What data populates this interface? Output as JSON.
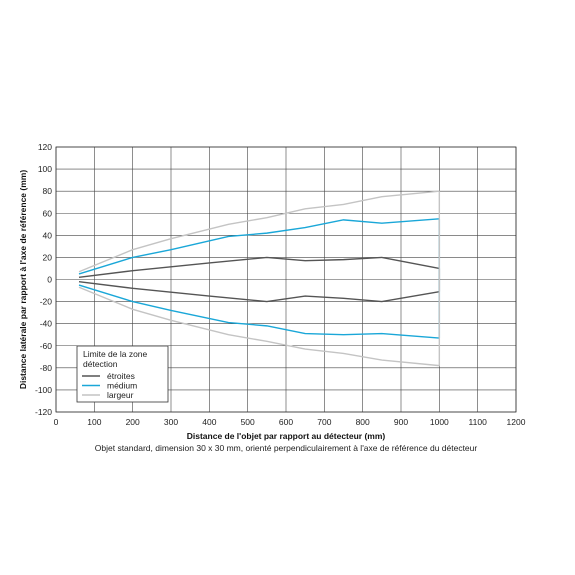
{
  "chart_data": {
    "type": "line",
    "xlabel": "Distance de l'objet par rapport au détecteur (mm)",
    "ylabel": "Distance latérale par rapport à l'axe de référence (mm)",
    "caption": "Objet standard, dimension 30 x 30 mm, orienté perpendiculairement à l'axe de référence du détecteur",
    "xlim": [
      0,
      1200
    ],
    "ylim": [
      -120,
      120
    ],
    "x_ticks": [
      "0",
      "100",
      "200",
      "300",
      "400",
      "500",
      "600",
      "700",
      "800",
      "900",
      "1000",
      "1100",
      "1200"
    ],
    "y_ticks": [
      "120",
      "100",
      "80",
      "60",
      "40",
      "20",
      "0",
      "-20",
      "-40",
      "-60",
      "-80",
      "-100",
      "-120"
    ],
    "grid": true,
    "legend": {
      "title": "Limite de la zone détection",
      "position": "bottom-left"
    },
    "series": [
      {
        "name": "étroites",
        "color": "#555555",
        "upper": [
          [
            60,
            2
          ],
          [
            200,
            8
          ],
          [
            400,
            15
          ],
          [
            550,
            20
          ],
          [
            650,
            17
          ],
          [
            750,
            18
          ],
          [
            850,
            20
          ],
          [
            1000,
            10
          ]
        ],
        "lower": [
          [
            60,
            -2
          ],
          [
            200,
            -8
          ],
          [
            400,
            -15
          ],
          [
            550,
            -20
          ],
          [
            650,
            -15
          ],
          [
            750,
            -17
          ],
          [
            850,
            -20
          ],
          [
            1000,
            -11
          ]
        ]
      },
      {
        "name": "médium",
        "color": "#1aa7d8",
        "upper": [
          [
            60,
            5
          ],
          [
            200,
            20
          ],
          [
            300,
            27
          ],
          [
            450,
            39
          ],
          [
            550,
            42
          ],
          [
            650,
            47
          ],
          [
            750,
            54
          ],
          [
            850,
            51
          ],
          [
            1000,
            55
          ]
        ],
        "lower": [
          [
            60,
            -5
          ],
          [
            200,
            -20
          ],
          [
            300,
            -28
          ],
          [
            450,
            -39
          ],
          [
            550,
            -42
          ],
          [
            650,
            -49
          ],
          [
            750,
            -50
          ],
          [
            850,
            -49
          ],
          [
            1000,
            -53
          ]
        ]
      },
      {
        "name": "largeur",
        "color": "#c4c4c4",
        "upper": [
          [
            60,
            7
          ],
          [
            200,
            27
          ],
          [
            300,
            37
          ],
          [
            450,
            50
          ],
          [
            550,
            56
          ],
          [
            650,
            64
          ],
          [
            750,
            68
          ],
          [
            850,
            75
          ],
          [
            1000,
            80
          ]
        ],
        "lower": [
          [
            60,
            -7
          ],
          [
            200,
            -27
          ],
          [
            300,
            -37
          ],
          [
            450,
            -50
          ],
          [
            550,
            -56
          ],
          [
            650,
            -63
          ],
          [
            750,
            -67
          ],
          [
            850,
            -73
          ],
          [
            1000,
            -78
          ]
        ]
      }
    ]
  }
}
